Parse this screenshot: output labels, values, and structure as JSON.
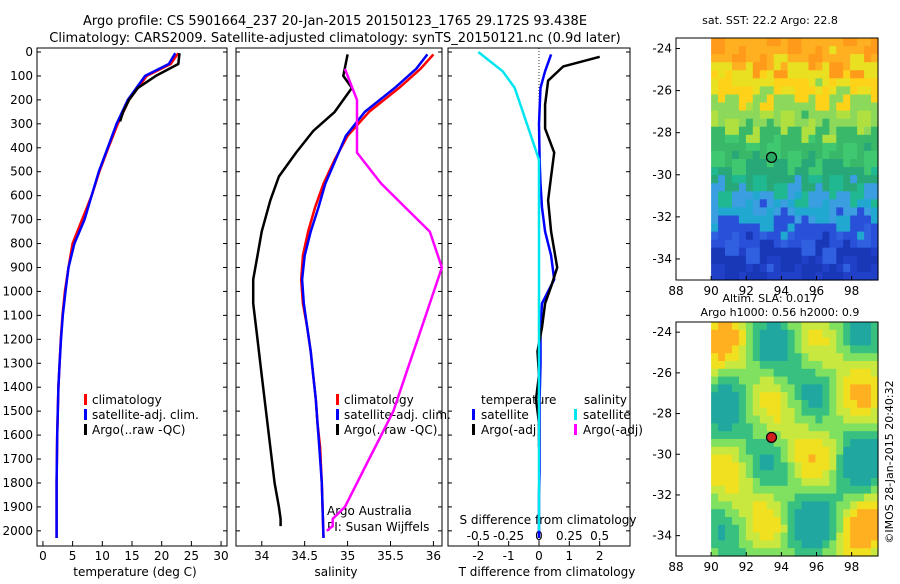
{
  "header": {
    "line1": "Argo profile: CS 5901664_237 20-Jan-2015 20150123_1765 29.172S 93.438E",
    "line2": "Climatology: CARS2009. Satellite-adjusted climatology: synTS_20150121.nc (0.9d later)"
  },
  "colors": {
    "climatology": "#ff0000",
    "satellite": "#0000ff",
    "argo": "#000000",
    "sal_satellite": "#00e5ee",
    "sal_argo": "#ff00ff"
  },
  "chart_data": [
    {
      "type": "line",
      "xlabel": "temperature (deg C)",
      "ylabel": "",
      "xlim": [
        -1,
        31
      ],
      "ylim": [
        2080,
        0
      ],
      "y_reversed": true,
      "xticks": [
        0,
        5,
        10,
        15,
        20,
        25,
        30
      ],
      "yticks": [
        0,
        100,
        200,
        300,
        400,
        500,
        600,
        700,
        800,
        900,
        1000,
        1100,
        1200,
        1300,
        1400,
        1500,
        1600,
        1700,
        1800,
        1900,
        2000
      ],
      "legend": [
        "climatology",
        "satellite-adj. clim.",
        "Argo(..raw -QC)"
      ],
      "series": [
        {
          "name": "climatology",
          "color": "#ff0000",
          "x": [
            22.8,
            21.5,
            17.5,
            14.5,
            12.6,
            11.0,
            9.5,
            8.2,
            6.6,
            5.0,
            4.3,
            3.7,
            3.3,
            3.0,
            2.8,
            2.6,
            2.5,
            2.4,
            2.35,
            2.3,
            2.3
          ],
          "y": [
            5,
            50,
            100,
            200,
            300,
            400,
            500,
            600,
            700,
            800,
            900,
            1000,
            1100,
            1200,
            1300,
            1400,
            1500,
            1600,
            1700,
            1800,
            2030
          ]
        },
        {
          "name": "satellite-adj. clim.",
          "color": "#0000ff",
          "x": [
            22.3,
            21.2,
            17.2,
            14.3,
            12.4,
            10.9,
            9.4,
            8.2,
            7.0,
            5.3,
            4.3,
            3.8,
            3.35,
            3.05,
            2.8,
            2.6,
            2.5,
            2.4,
            2.35,
            2.3,
            2.3
          ],
          "y": [
            5,
            50,
            100,
            200,
            300,
            400,
            500,
            600,
            700,
            800,
            900,
            1000,
            1100,
            1200,
            1300,
            1400,
            1500,
            1600,
            1700,
            1800,
            2030
          ]
        },
        {
          "name": "Argo(..raw -QC)",
          "color": "#000000",
          "x": [
            23.0,
            22.8,
            19.0,
            16.0,
            14.5,
            13.5,
            13.0
          ],
          "y": [
            5,
            50,
            100,
            150,
            200,
            250,
            290
          ]
        }
      ]
    },
    {
      "type": "line",
      "xlabel": "salinity",
      "xlim": [
        33.7,
        36.1
      ],
      "ylim": [
        2080,
        0
      ],
      "y_reversed": true,
      "xticks": [
        34,
        34.5,
        35,
        35.5,
        36
      ],
      "legend": [
        "climatology",
        "satellite-adj. clim.",
        "Argo(..raw -QC)"
      ],
      "annotation": [
        "Argo Australia",
        "PI: Susan Wijffels"
      ],
      "series": [
        {
          "name": "climatology",
          "color": "#ff0000",
          "x": [
            36.0,
            35.85,
            35.6,
            35.25,
            35.0,
            34.85,
            34.72,
            34.62,
            34.54,
            34.48,
            34.46,
            34.48,
            34.53,
            34.57,
            34.6,
            34.63,
            34.65,
            34.68,
            34.7,
            34.72
          ],
          "y": [
            10,
            70,
            150,
            250,
            350,
            450,
            550,
            650,
            750,
            850,
            950,
            1050,
            1150,
            1250,
            1350,
            1450,
            1550,
            1650,
            1800,
            2030
          ]
        },
        {
          "name": "satellite-adj. clim.",
          "color": "#0000ff",
          "x": [
            35.93,
            35.8,
            35.55,
            35.2,
            34.98,
            34.86,
            34.74,
            34.66,
            34.57,
            34.5,
            34.47,
            34.49,
            34.53,
            34.57,
            34.6,
            34.63,
            34.65,
            34.67,
            34.7,
            34.72
          ],
          "y": [
            10,
            70,
            150,
            250,
            350,
            450,
            550,
            650,
            750,
            850,
            950,
            1050,
            1150,
            1250,
            1350,
            1450,
            1550,
            1650,
            1800,
            2030
          ]
        },
        {
          "name": "Argo(..raw -QC)",
          "color": "#000000",
          "x": [
            35.0,
            34.95,
            35.05,
            34.85,
            34.6,
            34.4,
            34.2,
            34.1,
            34.0,
            33.95,
            33.9,
            33.9,
            33.95,
            34.0,
            34.05,
            34.1,
            34.15,
            34.2,
            34.22,
            34.22
          ],
          "y": [
            10,
            100,
            150,
            250,
            330,
            420,
            520,
            620,
            750,
            850,
            950,
            1050,
            1200,
            1350,
            1500,
            1650,
            1800,
            1900,
            1950,
            1980
          ]
        }
      ]
    },
    {
      "type": "line",
      "xlabel": "T difference from climatology",
      "xlabel_top": "S difference from climatology",
      "xlim": [
        -3,
        3
      ],
      "ylim": [
        2080,
        0
      ],
      "y_reversed": true,
      "xticks_T": [
        -2,
        -1,
        0,
        1,
        2
      ],
      "xticks_S": [
        -0.5,
        -0.25,
        0,
        0.25,
        0.5
      ],
      "legend_headers": [
        "temperature",
        "salinity"
      ],
      "legend": [
        "satellite",
        "Argo(-adj)",
        "satellite",
        "Argo(-adj)"
      ],
      "series": [
        {
          "name": "satellite",
          "color": "#0000ff",
          "x": [
            0.4,
            0.2,
            0.05,
            0.0,
            0.02,
            0.05,
            0.1,
            0.2,
            0.4,
            0.5,
            0.3,
            0.1,
            0.05,
            0.05,
            0.02,
            0.02,
            0.02,
            0.0,
            0.0,
            0.0
          ],
          "y": [
            10,
            80,
            150,
            300,
            450,
            550,
            650,
            750,
            850,
            950,
            1000,
            1050,
            1150,
            1300,
            1450,
            1600,
            1750,
            1850,
            1950,
            2030
          ]
        },
        {
          "name": "Argo(-adj)",
          "color": "#000000",
          "x": [
            2.0,
            0.8,
            0.3,
            0.2,
            0.2,
            0.5,
            0.4,
            0.3,
            0.4,
            0.6,
            0.4,
            0.2,
            0.1,
            -0.05,
            0.0,
            -0.1,
            0.0,
            0.0
          ],
          "y": [
            20,
            60,
            120,
            220,
            320,
            420,
            520,
            620,
            750,
            900,
            980,
            1050,
            1150,
            1250,
            1350,
            1450,
            1550,
            1650
          ]
        },
        {
          "name": "satellite",
          "color": "#00e5ee",
          "x": [
            -0.5,
            -0.3,
            -0.2,
            -0.1,
            0.0,
            0.0,
            0.0,
            0.0,
            0.0,
            0.0,
            0.0,
            0.0,
            0.0,
            0.0
          ],
          "y": [
            0,
            80,
            150,
            300,
            450,
            600,
            750,
            900,
            1100,
            1300,
            1500,
            1700,
            1900,
            2000
          ]
        },
        {
          "name": "Argo(-adj)",
          "color": "#ff00ff",
          "x": [
            -1.6,
            -1.5,
            -1.5,
            -1.3,
            -1.1,
            -0.9,
            -0.8,
            -0.9,
            -1.0,
            -1.1,
            -1.2,
            -1.3,
            -1.4,
            -1.5,
            -1.6,
            -1.7,
            -1.7,
            -1.75
          ],
          "y": [
            70,
            200,
            420,
            550,
            650,
            750,
            900,
            1050,
            1200,
            1350,
            1500,
            1600,
            1700,
            1800,
            1900,
            1950,
            1980,
            2000
          ]
        }
      ]
    },
    {
      "type": "heatmap",
      "title": "sat. SST: 22.2  Argo: 22.8",
      "xlim": [
        88,
        99.5
      ],
      "ylim": [
        -35,
        -23.5
      ],
      "xticks": [
        88,
        90,
        92,
        94,
        96,
        98
      ],
      "yticks": [
        -24,
        -26,
        -28,
        -30,
        -32,
        -34
      ],
      "marker": {
        "lon": 93.438,
        "lat": -29.172
      }
    },
    {
      "type": "heatmap",
      "title": "Altim. SLA: 0.017",
      "subtitle": "Argo h1000: 0.56 h2000: 0.9",
      "xlim": [
        88,
        99.5
      ],
      "ylim": [
        -35,
        -23.5
      ],
      "xticks": [
        88,
        90,
        92,
        94,
        96,
        98
      ],
      "yticks": [
        -24,
        -26,
        -28,
        -30,
        -32,
        -34
      ],
      "marker": {
        "lon": 93.438,
        "lat": -29.172
      }
    }
  ],
  "footer": {
    "credit": "©IMOS 28-Jan-2015 20:40:32"
  }
}
